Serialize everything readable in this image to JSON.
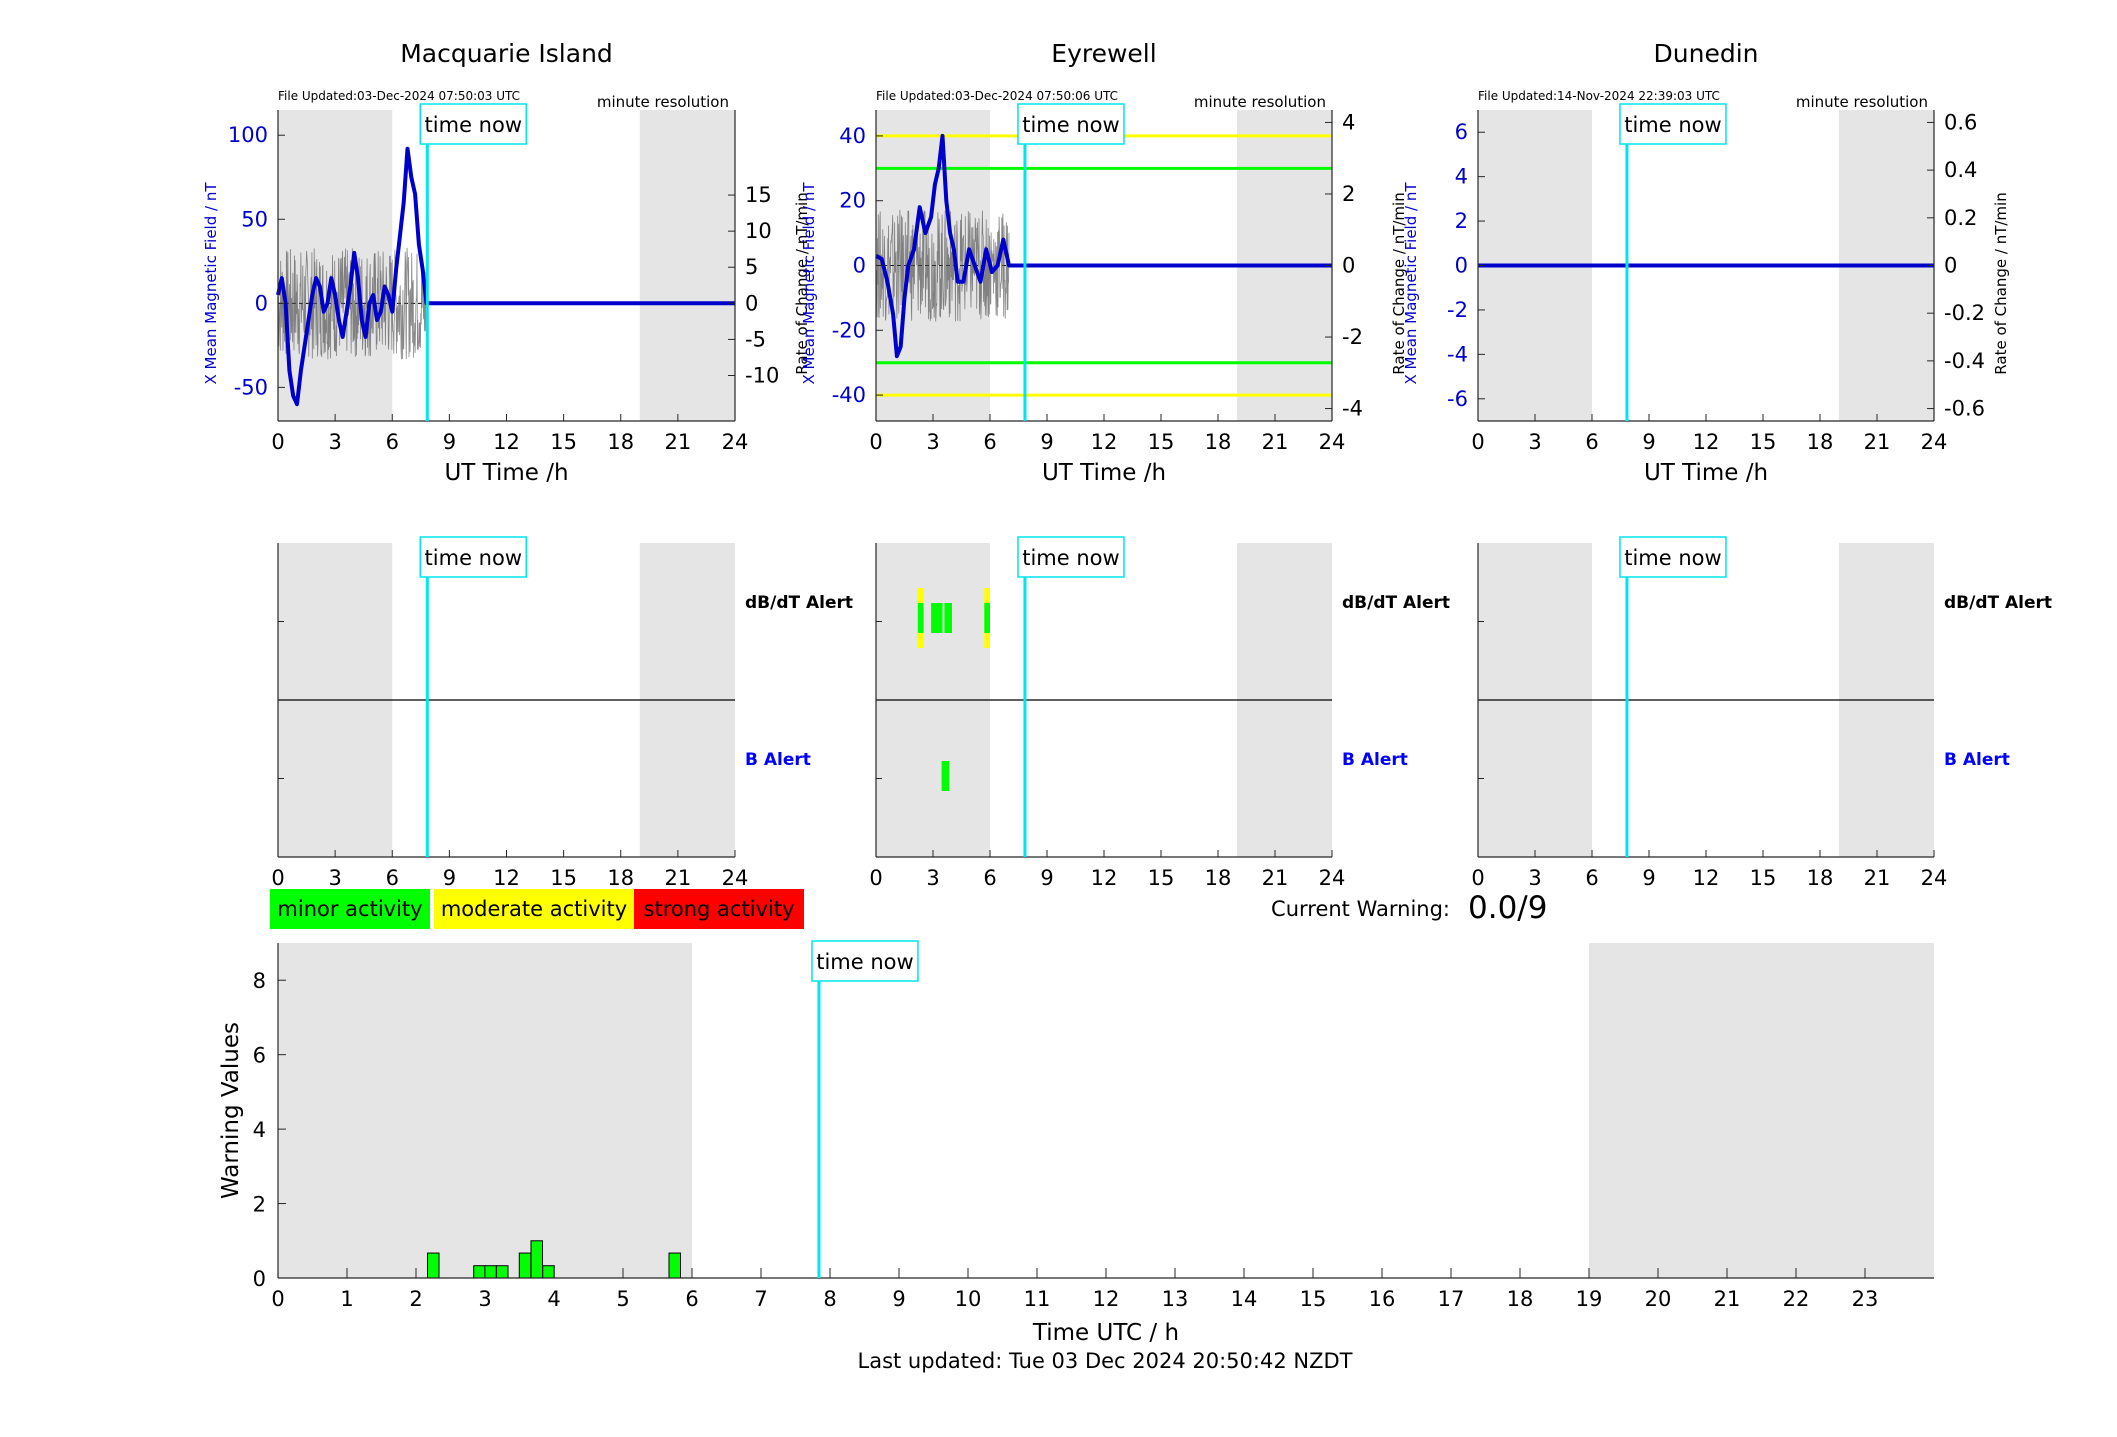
{
  "time_now_label": "time now",
  "time_now_hour": 7.84,
  "night_shading_hours": [
    [
      0,
      6
    ],
    [
      19,
      24
    ]
  ],
  "colors": {
    "mean_field": "#0000cc",
    "raw_field": "#555555",
    "time_now": "#00e5ee",
    "night": "#e5e5e5",
    "minor": "#00ff00",
    "moderate": "#ffff00",
    "strong": "#ff0000",
    "b_alert_label": "#0000ff",
    "dbdt_alert_label": "#000000"
  },
  "stations": [
    {
      "name": "Macquarie Island",
      "file_updated": "File Updated:03-Dec-2024 07:50:03 UTC",
      "resolution": "minute resolution",
      "xlabel": "UT Time /h",
      "ylabel_left": "X Mean Magnetic Field / nT",
      "ylabel_right": "Rate of Change / nT/min",
      "left_ticks": [
        -50,
        0,
        50,
        100
      ],
      "right_ticks": [
        -10,
        -5,
        0,
        5,
        10,
        15
      ],
      "ylim": [
        -70,
        115
      ]
    },
    {
      "name": "Eyrewell",
      "file_updated": "File Updated:03-Dec-2024 07:50:06 UTC",
      "resolution": "minute resolution",
      "xlabel": "UT Time /h",
      "ylabel_left": "X Mean Magnetic Field / nT",
      "ylabel_right": "Rate of Change / nT/min",
      "left_ticks": [
        -40,
        -20,
        0,
        20,
        40
      ],
      "right_ticks": [
        -4,
        -2,
        0,
        2,
        4
      ],
      "ylim": [
        -48,
        48
      ]
    },
    {
      "name": "Dunedin",
      "file_updated": "File Updated:14-Nov-2024 22:39:03 UTC",
      "resolution": "minute resolution",
      "xlabel": "UT Time /h",
      "ylabel_left": "X Mean Magnetic Field / nT",
      "ylabel_right": "Rate of Change / nT/min",
      "left_ticks": [
        -6,
        -4,
        -2,
        0,
        2,
        4,
        6
      ],
      "right_ticks": [
        -0.6,
        -0.4,
        -0.2,
        0,
        0.2,
        0.4,
        0.6
      ],
      "ylim": [
        -7,
        7
      ]
    }
  ],
  "alerts": {
    "dbdt_label": "dB/dT Alert",
    "b_label": "B Alert"
  },
  "legend": {
    "minor": "minor activity",
    "moderate": "moderate activity",
    "strong": "strong activity"
  },
  "current_warning": {
    "label": "Current Warning:",
    "value": "0.0/9"
  },
  "warning_chart": {
    "ylabel": "Warning Values",
    "xlabel": "Time UTC / h",
    "x_ticks": [
      0,
      1,
      2,
      3,
      4,
      5,
      6,
      7,
      8,
      9,
      10,
      11,
      12,
      13,
      14,
      15,
      16,
      17,
      18,
      19,
      20,
      21,
      22,
      23
    ],
    "y_ticks": [
      0,
      2,
      4,
      6,
      8
    ],
    "ylim": [
      0,
      9
    ],
    "xlim": [
      0,
      24
    ]
  },
  "footer": "Last updated: Tue 03 Dec 2024 20:50:42 NZDT",
  "chart_data": [
    {
      "type": "line",
      "title": "Macquarie Island",
      "xlabel": "UT Time /h",
      "ylabel": "X Mean Magnetic Field / nT",
      "ylabel_right": "Rate of Change / nT/min",
      "xlim": [
        0,
        24
      ],
      "ylim": [
        -70,
        115
      ],
      "grid": false,
      "series": [
        {
          "x": [
            0,
            0.2,
            0.4,
            0.6,
            0.8,
            1.0,
            1.2,
            1.4,
            1.6,
            1.8,
            2.0,
            2.2,
            2.4,
            2.6,
            2.8,
            3.0,
            3.2,
            3.4,
            3.6,
            3.8,
            4.0,
            4.2,
            4.4,
            4.6,
            4.8,
            5.0,
            5.2,
            5.4,
            5.6,
            5.8,
            6.0,
            6.2,
            6.4,
            6.6,
            6.8,
            7.0,
            7.2,
            7.4,
            7.6,
            7.8,
            24
          ],
          "y": [
            5,
            15,
            0,
            -40,
            -55,
            -60,
            -40,
            -25,
            -10,
            5,
            15,
            10,
            -5,
            0,
            15,
            5,
            -10,
            -20,
            -5,
            10,
            30,
            15,
            -10,
            -20,
            0,
            5,
            -10,
            -5,
            10,
            5,
            -5,
            20,
            40,
            60,
            92,
            75,
            65,
            35,
            20,
            0,
            0
          ]
        }
      ]
    },
    {
      "type": "line",
      "title": "Eyrewell",
      "xlabel": "UT Time /h",
      "ylabel": "X Mean Magnetic Field / nT",
      "ylabel_right": "Rate of Change / nT/min",
      "xlim": [
        0,
        24
      ],
      "ylim": [
        -48,
        48
      ],
      "grid": false,
      "threshold_lines": {
        "minor": [
          30,
          -30
        ],
        "moderate": [
          40,
          -40
        ]
      },
      "series": [
        {
          "x": [
            0,
            0.3,
            0.6,
            0.9,
            1.1,
            1.3,
            1.5,
            1.7,
            2.0,
            2.3,
            2.6,
            2.9,
            3.1,
            3.3,
            3.5,
            3.7,
            3.9,
            4.1,
            4.3,
            4.6,
            4.9,
            5.2,
            5.5,
            5.8,
            6.1,
            6.4,
            6.7,
            7.0,
            7.84,
            24
          ],
          "y": [
            3,
            2,
            -5,
            -15,
            -28,
            -25,
            -10,
            0,
            5,
            18,
            10,
            15,
            25,
            30,
            40,
            20,
            10,
            5,
            -5,
            -5,
            5,
            0,
            -5,
            5,
            -2,
            0,
            8,
            0,
            0,
            0
          ]
        }
      ]
    },
    {
      "type": "line",
      "title": "Dunedin",
      "xlabel": "UT Time /h",
      "ylabel": "X Mean Magnetic Field / nT",
      "ylabel_right": "Rate of Change / nT/min",
      "xlim": [
        0,
        24
      ],
      "ylim": [
        -7,
        7
      ],
      "grid": false,
      "series": [
        {
          "x": [
            0,
            24
          ],
          "y": [
            0,
            0
          ]
        }
      ]
    },
    {
      "type": "bar",
      "title": "Eyrewell alerts",
      "dbdt_alert_blocks": [
        [
          2.2,
          2.5,
          "moderate"
        ],
        [
          2.9,
          3.5,
          "minor"
        ],
        [
          3.6,
          4.0,
          "minor"
        ],
        [
          5.7,
          6.0,
          "moderate"
        ]
      ],
      "b_alert_blocks": [
        [
          3.45,
          3.85,
          "minor"
        ]
      ]
    },
    {
      "type": "bar",
      "title": "",
      "xlabel": "Time UTC / h",
      "ylabel": "Warning Values",
      "xlim": [
        0,
        24
      ],
      "ylim": [
        0,
        9
      ],
      "bars": [
        {
          "x": 2.25,
          "value": 0.67
        },
        {
          "x": 2.92,
          "value": 0.33
        },
        {
          "x": 3.08,
          "value": 0.33
        },
        {
          "x": 3.25,
          "value": 0.33
        },
        {
          "x": 3.58,
          "value": 0.67
        },
        {
          "x": 3.75,
          "value": 1.0
        },
        {
          "x": 3.92,
          "value": 0.33
        },
        {
          "x": 5.75,
          "value": 0.67
        }
      ]
    }
  ]
}
